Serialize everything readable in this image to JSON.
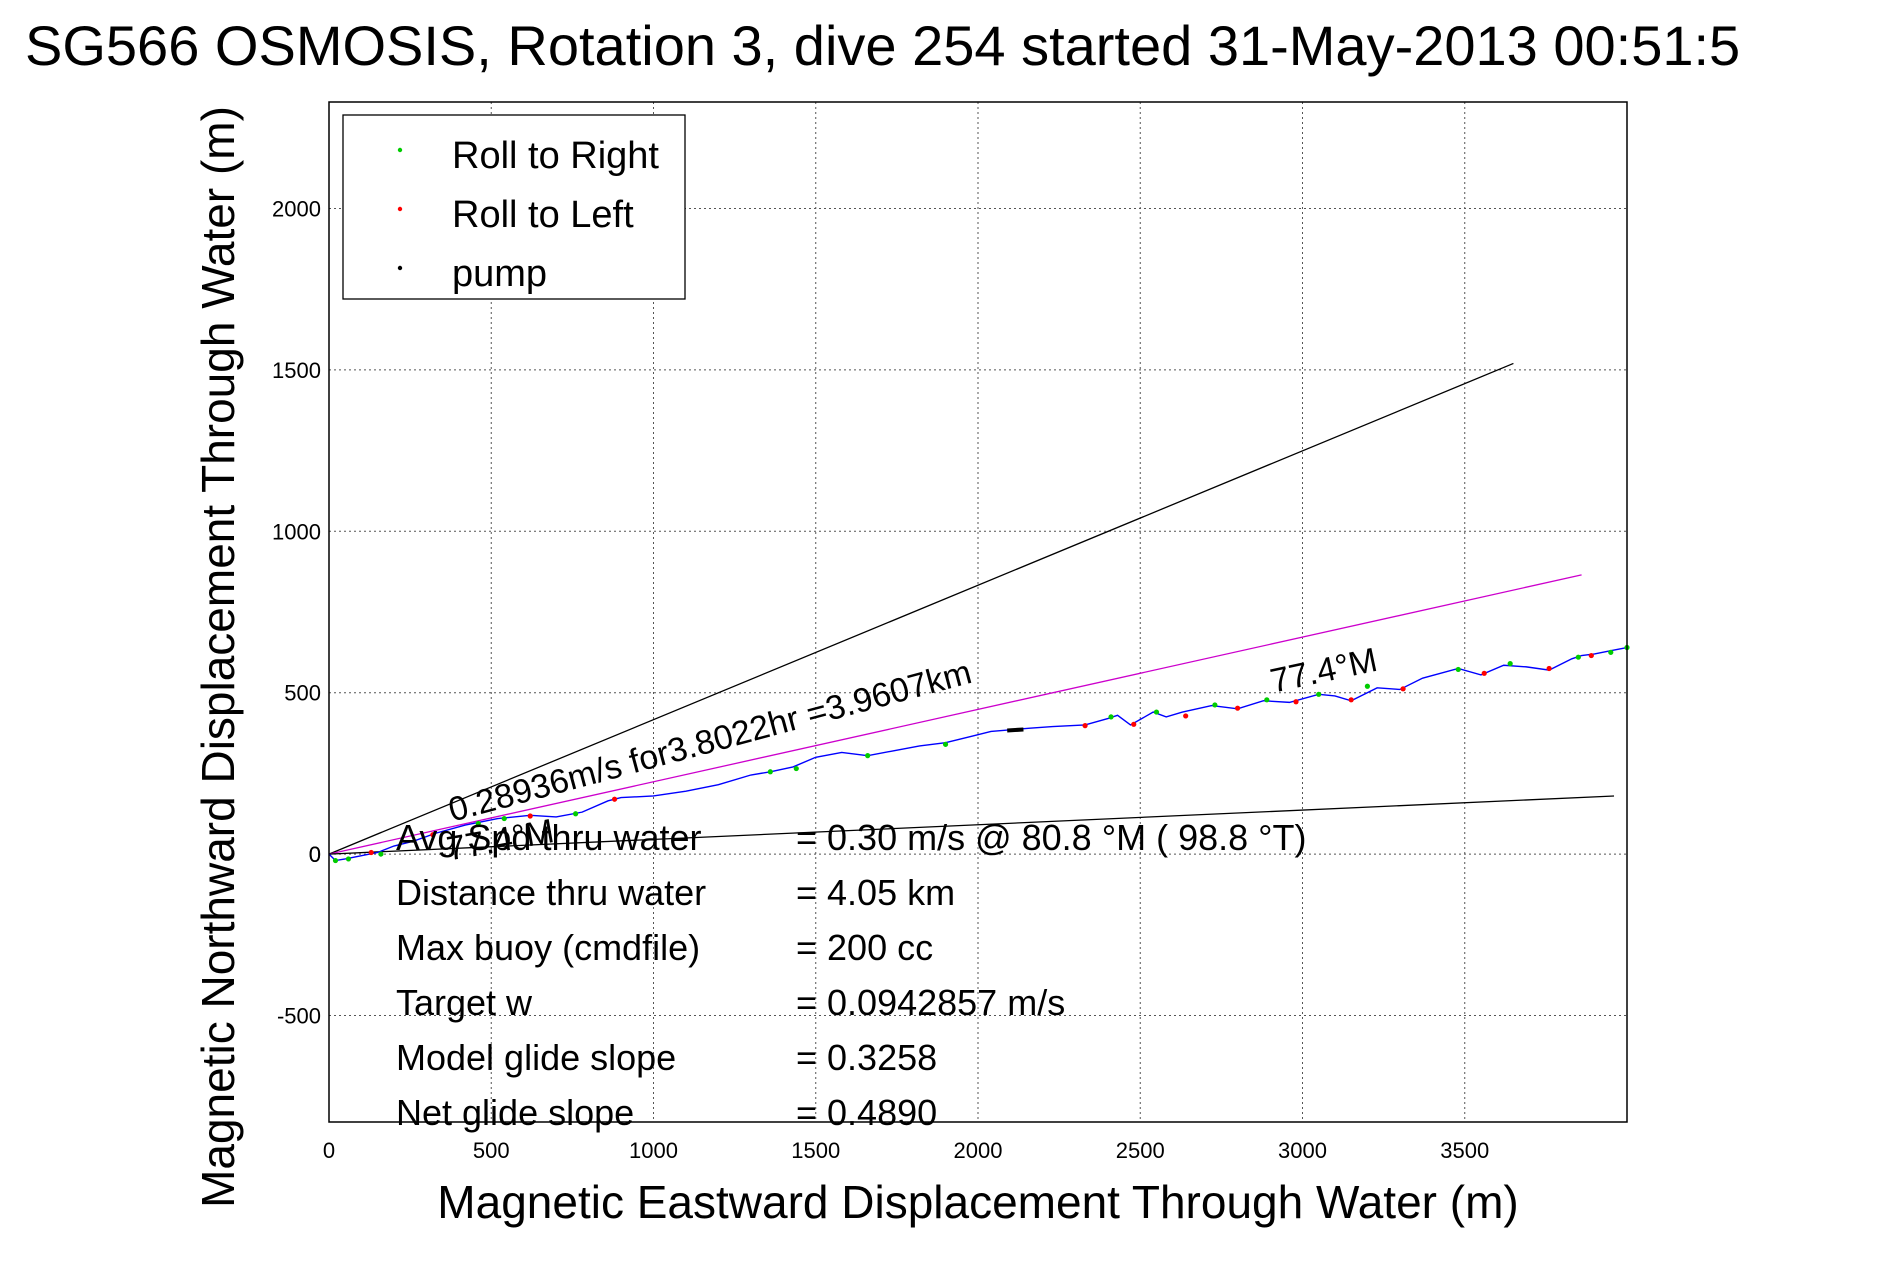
{
  "chart_data": {
    "type": "line",
    "title": "SG566 OSMOSIS, Rotation 3, dive 254 started 31-May-2013 00:51:5",
    "xlabel": "Magnetic Eastward Displacement Through Water (m)",
    "ylabel": "Magnetic Northward Displacement Through Water (m)",
    "xlim": [
      0,
      4000
    ],
    "ylim": [
      -830,
      2330
    ],
    "xticks": [
      "0",
      "500",
      "1000",
      "1500",
      "2000",
      "2500",
      "3000",
      "3500"
    ],
    "yticks": [
      "-500",
      "0",
      "500",
      "1000",
      "1500",
      "2000"
    ],
    "grid": true,
    "legend_position": "top-left",
    "legend": [
      {
        "label": "Roll to Right",
        "color": "#00cc00"
      },
      {
        "label": "Roll to Left",
        "color": "#ff0000"
      },
      {
        "label": "pump",
        "color": "#000000"
      }
    ],
    "track": {
      "color": "#0000ff",
      "x": [
        0,
        20,
        50,
        100,
        150,
        200,
        260,
        330,
        420,
        520,
        620,
        700,
        780,
        860,
        900,
        1000,
        1100,
        1200,
        1300,
        1360,
        1430,
        1500,
        1580,
        1660,
        1740,
        1820,
        1900,
        1980,
        2040,
        2100,
        2160,
        2230,
        2330,
        2400,
        2430,
        2470,
        2540,
        2580,
        2630,
        2720,
        2800,
        2880,
        2960,
        3050,
        3100,
        3150,
        3230,
        3300,
        3370,
        3480,
        3550,
        3620,
        3690,
        3760,
        3830,
        3860,
        3900,
        3950,
        4000
      ],
      "y": [
        0,
        -20,
        -15,
        -5,
        5,
        25,
        40,
        65,
        90,
        110,
        120,
        115,
        130,
        165,
        175,
        180,
        195,
        215,
        245,
        255,
        270,
        300,
        315,
        305,
        320,
        335,
        345,
        365,
        380,
        385,
        390,
        395,
        400,
        420,
        430,
        400,
        440,
        425,
        440,
        460,
        450,
        475,
        470,
        495,
        490,
        475,
        515,
        510,
        545,
        575,
        555,
        585,
        580,
        570,
        605,
        615,
        620,
        630,
        640
      ]
    },
    "roll_right_points": {
      "x": [
        20,
        60,
        160,
        460,
        540,
        760,
        1360,
        1440,
        1660,
        1900,
        2410,
        2550,
        2730,
        2890,
        3050,
        3200,
        3480,
        3640,
        3850,
        3950,
        4000
      ],
      "y": [
        -20,
        -15,
        0,
        95,
        110,
        125,
        255,
        265,
        305,
        340,
        425,
        440,
        462,
        478,
        495,
        520,
        572,
        590,
        610,
        625,
        640
      ]
    },
    "roll_left_points": {
      "x": [
        130,
        320,
        620,
        880,
        2330,
        2480,
        2640,
        2800,
        2980,
        3150,
        3310,
        3560,
        3760,
        3890
      ],
      "y": [
        5,
        60,
        118,
        170,
        398,
        402,
        428,
        452,
        472,
        478,
        512,
        560,
        575,
        615
      ]
    },
    "pump_segment": {
      "x": [
        2090,
        2140
      ],
      "y": [
        383,
        386
      ]
    },
    "reference_lines": [
      {
        "color": "#000000",
        "x": [
          0,
          3650
        ],
        "y": [
          0,
          1520
        ]
      },
      {
        "color": "#cc00cc",
        "x": [
          0,
          3860
        ],
        "y": [
          0,
          865
        ]
      },
      {
        "color": "#000000",
        "x": [
          0,
          3960
        ],
        "y": [
          0,
          180
        ]
      }
    ],
    "annotations": [
      {
        "text": "0.28936m/s for3.8022hr =3.9607km",
        "x": 380,
        "y": 100,
        "angle_deg": -15
      },
      {
        "text": "77.4°M",
        "x": 2910,
        "y": 500,
        "angle_deg": -12
      },
      {
        "text": "77.4°M",
        "x": 370,
        "y": -20,
        "angle_deg": -10
      }
    ],
    "stats": [
      {
        "label": "Avg Spd thru water",
        "value": "=  0.30 m/s @  80.8 °M ( 98.8 °T)"
      },
      {
        "label": "Distance thru water",
        "value": "=  4.05 km"
      },
      {
        "label": "Max buoy (cmdfile)",
        "value": "= 200 cc"
      },
      {
        "label": "Target w",
        "value": "= 0.0942857 m/s"
      },
      {
        "label": "Model glide slope",
        "value": "= 0.3258"
      },
      {
        "label": "Net glide slope",
        "value": "= 0.4890"
      }
    ]
  }
}
